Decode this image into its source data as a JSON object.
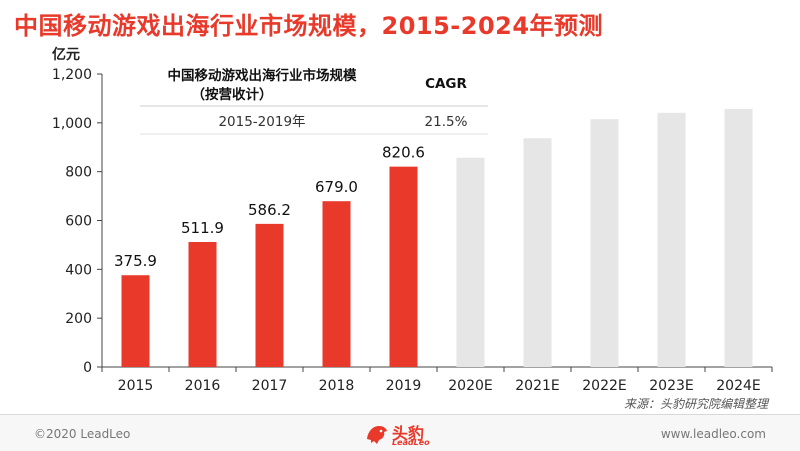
{
  "title": "中国移动游戏出海行业市场规模，2015-2024年预测",
  "footer": {
    "copyright": "©2020 LeadLeo",
    "website": "www.leadleo.com",
    "logo_text": "头豹",
    "logo_sub": "LeadLeo"
  },
  "source": "来源：头豹研究院编辑整理",
  "chart_data": {
    "type": "bar",
    "title": "中国移动游戏出海行业市场规模，2015-2024年预测",
    "ylabel": "亿元",
    "xlabel": "",
    "ylim": [
      0,
      1200
    ],
    "yticks": [
      0,
      200,
      400,
      600,
      800,
      1000,
      1200
    ],
    "ytick_labels": [
      "0",
      "200",
      "400",
      "600",
      "800",
      "1,000",
      "1,200"
    ],
    "categories": [
      "2015",
      "2016",
      "2017",
      "2018",
      "2019",
      "2020E",
      "2021E",
      "2022E",
      "2023E",
      "2024E"
    ],
    "values": [
      375.9,
      511.9,
      586.2,
      679.0,
      820.6,
      857,
      937,
      1015,
      1041,
      1057
    ],
    "data_labels": [
      "375.9",
      "511.9",
      "586.2",
      "679.0",
      "820.6",
      "",
      "",
      "",
      "",
      ""
    ],
    "colors": {
      "actual": "#e8392a",
      "forecast": "#e6e6e6"
    },
    "forecast_from_index": 5,
    "grid": false,
    "cagr_table": {
      "header_line1": "中国移动游戏出海行业市场规模",
      "header_line2": "（按营收计）",
      "cagr_header": "CAGR",
      "rows": [
        {
          "period": "2015-2019年",
          "cagr": "21.5%"
        }
      ]
    }
  }
}
